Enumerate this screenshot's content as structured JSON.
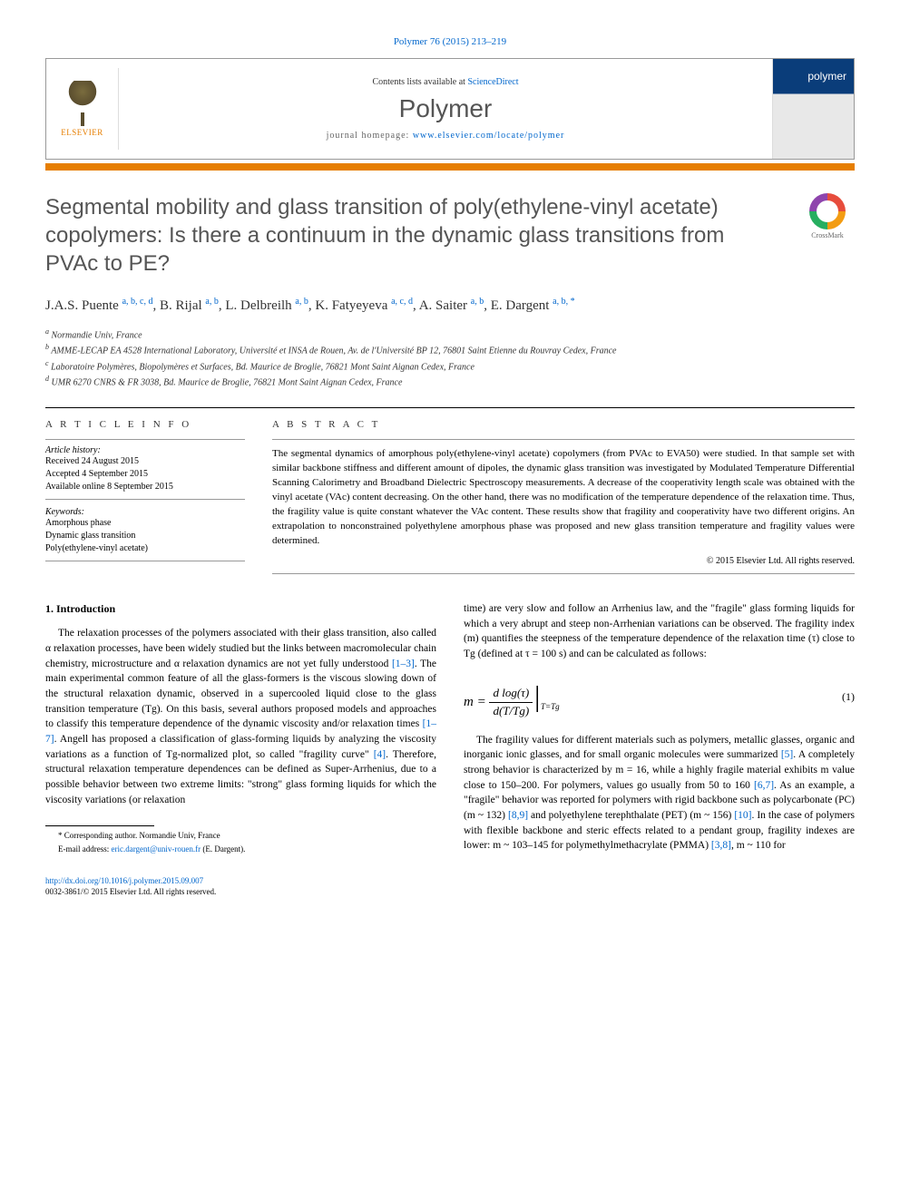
{
  "header": {
    "citation": "Polymer 76 (2015) 213–219",
    "contents_prefix": "Contents lists available at ",
    "contents_link": "ScienceDirect",
    "journal_name": "Polymer",
    "homepage_prefix": "journal homepage: ",
    "homepage_url": "www.elsevier.com/locate/polymer",
    "publisher_name": "ELSEVIER",
    "cover_label": "polymer",
    "orange_bar_color": "#e67e00",
    "header_border_color": "#999999"
  },
  "crossmark": {
    "label": "CrossMark"
  },
  "article": {
    "title": "Segmental mobility and glass transition of poly(ethylene-vinyl acetate) copolymers: Is there a continuum in the dynamic glass transitions from PVAc to PE?",
    "authors_html": "J.A.S. Puente <sup>a, b, c, d</sup>, B. Rijal <sup>a, b</sup>, L. Delbreilh <sup>a, b</sup>, K. Fatyeyeva <sup>a, c, d</sup>, A. Saiter <sup>a, b</sup>, E. Dargent <sup>a, b, *</sup>",
    "authors": [
      {
        "name": "J.A.S. Puente",
        "affils": "a, b, c, d"
      },
      {
        "name": "B. Rijal",
        "affils": "a, b"
      },
      {
        "name": "L. Delbreilh",
        "affils": "a, b"
      },
      {
        "name": "K. Fatyeyeva",
        "affils": "a, c, d"
      },
      {
        "name": "A. Saiter",
        "affils": "a, b"
      },
      {
        "name": "E. Dargent",
        "affils": "a, b, *"
      }
    ],
    "affiliations": [
      {
        "sup": "a",
        "text": "Normandie Univ, France"
      },
      {
        "sup": "b",
        "text": "AMME-LECAP EA 4528 International Laboratory, Université et INSA de Rouen, Av. de l'Université BP 12, 76801 Saint Etienne du Rouvray Cedex, France"
      },
      {
        "sup": "c",
        "text": "Laboratoire Polymères, Biopolymères et Surfaces, Bd. Maurice de Broglie, 76821 Mont Saint Aignan Cedex, France"
      },
      {
        "sup": "d",
        "text": "UMR 6270 CNRS & FR 3038, Bd. Maurice de Broglie, 76821 Mont Saint Aignan Cedex, France"
      }
    ]
  },
  "article_info": {
    "heading": "A R T I C L E   I N F O",
    "history_label": "Article history:",
    "history": [
      "Received 24 August 2015",
      "Accepted 4 September 2015",
      "Available online 8 September 2015"
    ],
    "keywords_label": "Keywords:",
    "keywords": [
      "Amorphous phase",
      "Dynamic glass transition",
      "Poly(ethylene-vinyl acetate)"
    ]
  },
  "abstract": {
    "heading": "A B S T R A C T",
    "text": "The segmental dynamics of amorphous poly(ethylene-vinyl acetate) copolymers (from PVAc to EVA50) were studied. In that sample set with similar backbone stiffness and different amount of dipoles, the dynamic glass transition was investigated by Modulated Temperature Differential Scanning Calorimetry and Broadband Dielectric Spectroscopy measurements. A decrease of the cooperativity length scale was obtained with the vinyl acetate (VAc) content decreasing. On the other hand, there was no modification of the temperature dependence of the relaxation time. Thus, the fragility value is quite constant whatever the VAc content. These results show that fragility and cooperativity have two different origins. An extrapolation to nonconstrained polyethylene amorphous phase was proposed and new glass transition temperature and fragility values were determined.",
    "copyright": "© 2015 Elsevier Ltd. All rights reserved."
  },
  "body": {
    "section1_heading": "1. Introduction",
    "col1_p1_a": "The relaxation processes of the polymers associated with their glass transition, also called α relaxation processes, have been widely studied but the links between macromolecular chain chemistry, microstructure and α relaxation dynamics are not yet fully understood ",
    "col1_ref1": "[1–3]",
    "col1_p1_b": ". The main experimental common feature of all the glass-formers is the viscous slowing down of the structural relaxation dynamic, observed in a supercooled liquid close to the glass transition temperature (Tg). On this basis, several authors proposed models and approaches to classify this temperature dependence of the dynamic viscosity and/or relaxation times ",
    "col1_ref2": "[1–7]",
    "col1_p1_c": ". Angell has proposed a classification of glass-forming liquids by analyzing the viscosity variations as a function of Tg-normalized plot, so called \"fragility curve\" ",
    "col1_ref3": "[4]",
    "col1_p1_d": ". Therefore, structural relaxation temperature dependences can be defined as Super-Arrhenius, due to a possible behavior between two extreme limits: \"strong\" glass forming liquids for which the viscosity variations (or relaxation",
    "col2_p1_a": "time) are very slow and follow an Arrhenius law, and the \"fragile\" glass forming liquids for which a very abrupt and steep non-Arrhenian variations can be observed. The fragility index (m) quantifies the steepness of the temperature dependence of the relaxation time (τ) close to Tg (defined at τ = 100 s) and can be calculated as follows:",
    "equation": {
      "lhs": "m = ",
      "num": "d log(τ)",
      "den": "d(T/Tg)",
      "sub": "T=Tg",
      "number": "(1)"
    },
    "col2_p2_a": "The fragility values for different materials such as polymers, metallic glasses, organic and inorganic ionic glasses, and for small organic molecules were summarized ",
    "col2_ref1": "[5]",
    "col2_p2_b": ". A completely strong behavior is characterized by m = 16, while a highly fragile material exhibits m value close to 150–200. For polymers, values go usually from 50 to 160 ",
    "col2_ref2": "[6,7]",
    "col2_p2_c": ". As an example, a \"fragile\" behavior was reported for polymers with rigid backbone such as polycarbonate (PC) (m ~ 132) ",
    "col2_ref3": "[8,9]",
    "col2_p2_d": " and polyethylene terephthalate (PET) (m ~ 156) ",
    "col2_ref4": "[10]",
    "col2_p2_e": ". In the case of polymers with flexible backbone and steric effects related to a pendant group, fragility indexes are lower: m ~ 103–145 for polymethylmethacrylate (PMMA) ",
    "col2_ref5": "[3,8]",
    "col2_p2_f": ", m ~ 110 for"
  },
  "footnote": {
    "corresponding": "* Corresponding author. Normandie Univ, France",
    "email_label": "E-mail address: ",
    "email": "eric.dargent@univ-rouen.fr",
    "email_suffix": " (E. Dargent)."
  },
  "footer": {
    "doi": "http://dx.doi.org/10.1016/j.polymer.2015.09.007",
    "issn_copyright": "0032-3861/© 2015 Elsevier Ltd. All rights reserved."
  },
  "colors": {
    "link": "#0066cc",
    "orange": "#e67e00",
    "title_gray": "#555555",
    "text": "#000000"
  },
  "typography": {
    "title_fontsize": 24,
    "body_fontsize": 11.5,
    "abstract_fontsize": 11,
    "affil_fontsize": 10,
    "footnote_fontsize": 9
  }
}
